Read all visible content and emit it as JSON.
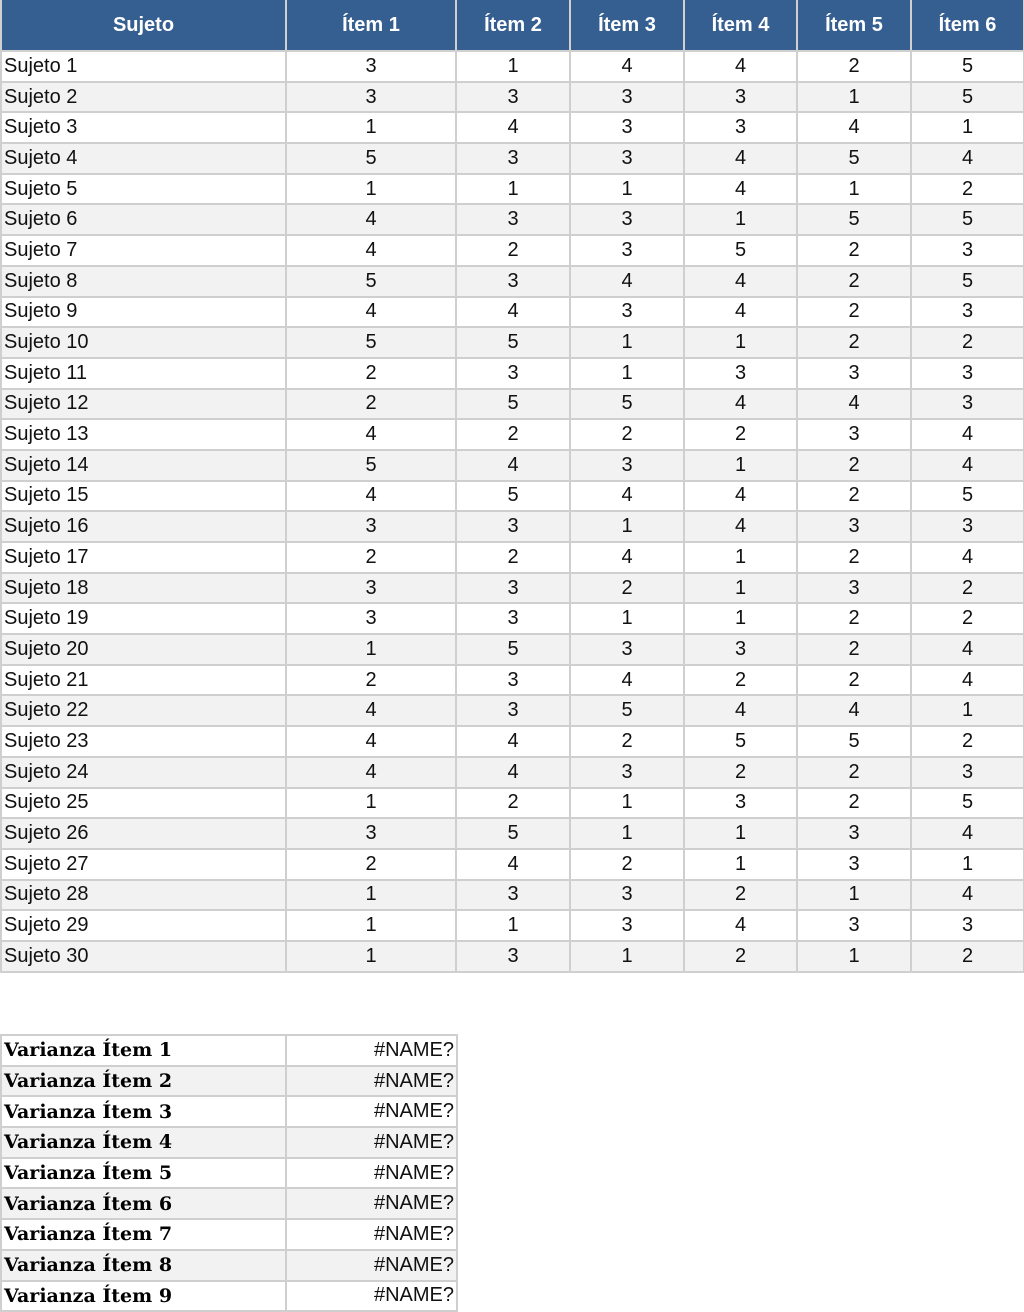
{
  "main_table": {
    "headers": [
      "Sujeto",
      "Ítem 1",
      "Ítem 2",
      "Ítem 3",
      "Ítem 4",
      "Ítem 5",
      "Ítem 6"
    ],
    "rows": [
      [
        "Sujeto 1",
        "3",
        "1",
        "4",
        "4",
        "2",
        "5"
      ],
      [
        "Sujeto 2",
        "3",
        "3",
        "3",
        "3",
        "1",
        "5"
      ],
      [
        "Sujeto 3",
        "1",
        "4",
        "3",
        "3",
        "4",
        "1"
      ],
      [
        "Sujeto 4",
        "5",
        "3",
        "3",
        "4",
        "5",
        "4"
      ],
      [
        "Sujeto 5",
        "1",
        "1",
        "1",
        "4",
        "1",
        "2"
      ],
      [
        "Sujeto 6",
        "4",
        "3",
        "3",
        "1",
        "5",
        "5"
      ],
      [
        "Sujeto 7",
        "4",
        "2",
        "3",
        "5",
        "2",
        "3"
      ],
      [
        "Sujeto 8",
        "5",
        "3",
        "4",
        "4",
        "2",
        "5"
      ],
      [
        "Sujeto 9",
        "4",
        "4",
        "3",
        "4",
        "2",
        "3"
      ],
      [
        "Sujeto 10",
        "5",
        "5",
        "1",
        "1",
        "2",
        "2"
      ],
      [
        "Sujeto 11",
        "2",
        "3",
        "1",
        "3",
        "3",
        "3"
      ],
      [
        "Sujeto 12",
        "2",
        "5",
        "5",
        "4",
        "4",
        "3"
      ],
      [
        "Sujeto 13",
        "4",
        "2",
        "2",
        "2",
        "3",
        "4"
      ],
      [
        "Sujeto 14",
        "5",
        "4",
        "3",
        "1",
        "2",
        "4"
      ],
      [
        "Sujeto 15",
        "4",
        "5",
        "4",
        "4",
        "2",
        "5"
      ],
      [
        "Sujeto 16",
        "3",
        "3",
        "1",
        "4",
        "3",
        "3"
      ],
      [
        "Sujeto 17",
        "2",
        "2",
        "4",
        "1",
        "2",
        "4"
      ],
      [
        "Sujeto 18",
        "3",
        "3",
        "2",
        "1",
        "3",
        "2"
      ],
      [
        "Sujeto 19",
        "3",
        "3",
        "1",
        "1",
        "2",
        "2"
      ],
      [
        "Sujeto 20",
        "1",
        "5",
        "3",
        "3",
        "2",
        "4"
      ],
      [
        "Sujeto 21",
        "2",
        "3",
        "4",
        "2",
        "2",
        "4"
      ],
      [
        "Sujeto 22",
        "4",
        "3",
        "5",
        "4",
        "4",
        "1"
      ],
      [
        "Sujeto 23",
        "4",
        "4",
        "2",
        "5",
        "5",
        "2"
      ],
      [
        "Sujeto 24",
        "4",
        "4",
        "3",
        "2",
        "2",
        "3"
      ],
      [
        "Sujeto 25",
        "1",
        "2",
        "1",
        "3",
        "2",
        "5"
      ],
      [
        "Sujeto 26",
        "3",
        "5",
        "1",
        "1",
        "3",
        "4"
      ],
      [
        "Sujeto 27",
        "2",
        "4",
        "2",
        "1",
        "3",
        "1"
      ],
      [
        "Sujeto 28",
        "1",
        "3",
        "3",
        "2",
        "1",
        "4"
      ],
      [
        "Sujeto 29",
        "1",
        "1",
        "3",
        "4",
        "3",
        "3"
      ],
      [
        "Sujeto 30",
        "1",
        "3",
        "1",
        "2",
        "1",
        "2"
      ]
    ]
  },
  "variance_table": {
    "rows": [
      [
        "Varianza Ítem 1",
        "#NAME?"
      ],
      [
        "Varianza Ítem 2",
        "#NAME?"
      ],
      [
        "Varianza Ítem 3",
        "#NAME?"
      ],
      [
        "Varianza Ítem 4",
        "#NAME?"
      ],
      [
        "Varianza Ítem 5",
        "#NAME?"
      ],
      [
        "Varianza Ítem 6",
        "#NAME?"
      ],
      [
        "Varianza Ítem 7",
        "#NAME?"
      ],
      [
        "Varianza Ítem 8",
        "#NAME?"
      ],
      [
        "Varianza Ítem 9",
        "#NAME?"
      ]
    ]
  },
  "colors": {
    "header_bg": "#365f91",
    "header_text": "#ffffff",
    "alt_row": "#f2f2f2"
  }
}
